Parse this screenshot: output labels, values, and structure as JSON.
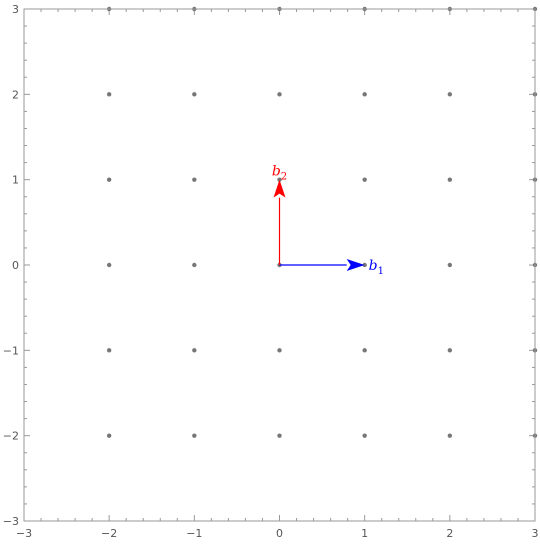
{
  "chart_data": {
    "type": "scatter",
    "xlim": [
      -3,
      3
    ],
    "ylim": [
      -3,
      3
    ],
    "grid": false,
    "xticks": [
      -3,
      -2,
      -1,
      0,
      1,
      2,
      3
    ],
    "yticks": [
      -3,
      -2,
      -1,
      0,
      1,
      2,
      3
    ],
    "xtick_labels": [
      "−3",
      "−2",
      "−1",
      "0",
      "1",
      "2",
      "3"
    ],
    "ytick_labels": [
      "−3",
      "−2",
      "−1",
      "0",
      "1",
      "2",
      "3"
    ],
    "lattice_points": {
      "x": [
        -2,
        -1,
        0,
        1,
        2,
        3
      ],
      "y": [
        -2,
        -1,
        0,
        1,
        2,
        3
      ],
      "color": "#777777"
    },
    "vectors": [
      {
        "label": "b",
        "subscript": "1",
        "from": [
          0,
          0
        ],
        "to": [
          1,
          0
        ],
        "color": "#0000ff"
      },
      {
        "label": "b",
        "subscript": "2",
        "from": [
          0,
          0
        ],
        "to": [
          0,
          1
        ],
        "color": "#ff0000"
      }
    ],
    "frame_color": "#999999"
  }
}
